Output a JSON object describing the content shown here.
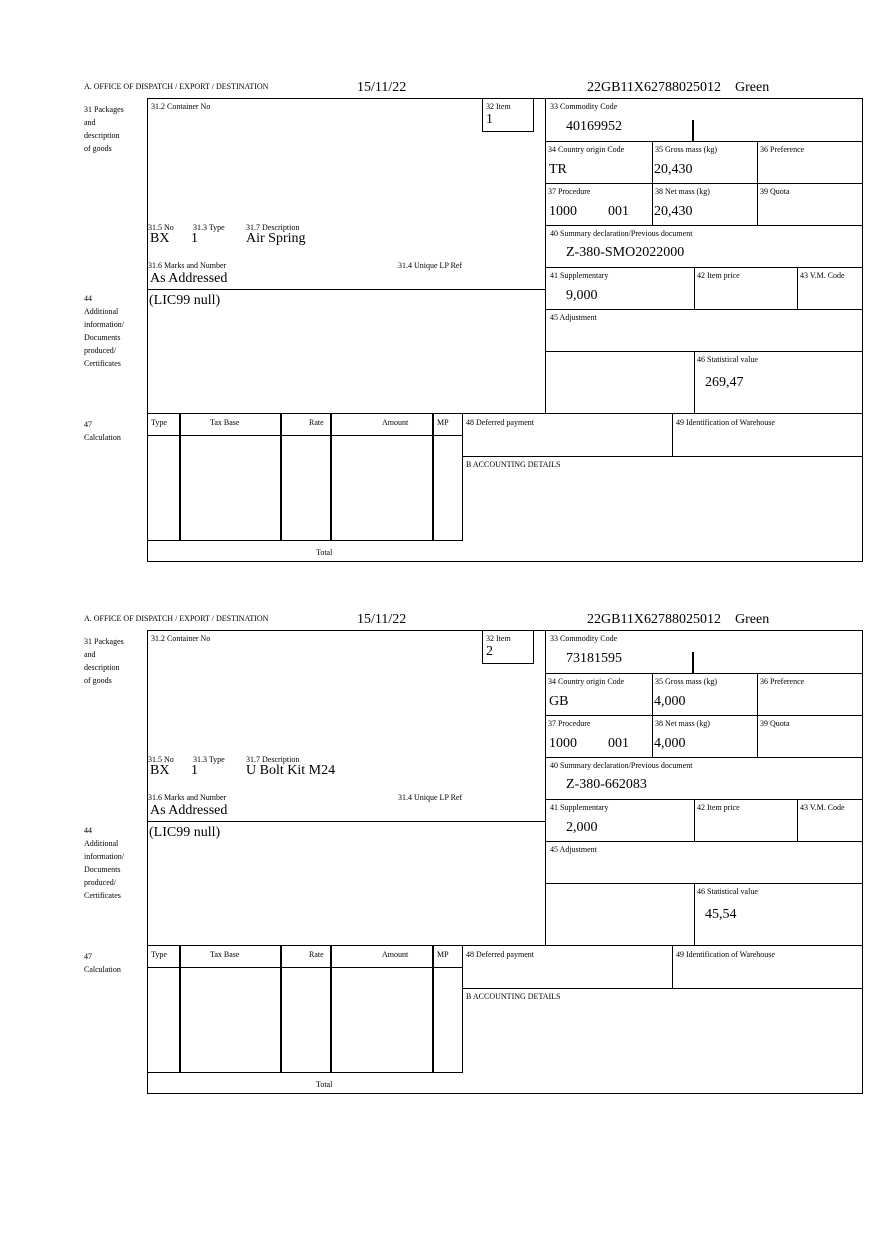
{
  "labels": {
    "office": "A. OFFICE OF DISPATCH / EXPORT / DESTINATION",
    "box31": "31 Packages\nand\ndescription\nof goods",
    "box31_2": "31.2 Container No",
    "box31_5": "31.5 No",
    "box31_3": "31.3 Type",
    "box31_7": "31.7 Description",
    "box31_6": "31.6 Marks and Number",
    "box31_4": "31.4 Unique LP Ref",
    "box32": "32 Item",
    "box33": "33 Commodity Code",
    "box34": "34 Country origin Code",
    "box35": "35 Gross mass (kg)",
    "box36": "36 Preference",
    "box37": "37 Procedure",
    "box38": "38 Net mass (kg)",
    "box39": "39 Quota",
    "box40": "40 Summary declaration/Previous document",
    "box41": "41 Supplementary",
    "box42": "42 Item price",
    "box43": "43 V.M. Code",
    "box44": "44\nAdditional\ninformation/\nDocuments\nproduced/\nCertificates",
    "box45": "45 Adjustment",
    "box46": "46 Statistical value",
    "box47": "47\nCalculation",
    "col_type": "Type",
    "col_tax_base": "Tax Base",
    "col_rate": "Rate",
    "col_amount": "Amount",
    "col_mp": "MP",
    "total": "Total",
    "box48": "48 Deferred payment",
    "box49": "49 Identification of Warehouse",
    "boxB": "B ACCOUNTING DETAILS"
  },
  "forms": [
    {
      "date": "15/11/22",
      "reference": "22GB11X62788025012",
      "status": "Green",
      "item": "1",
      "commodity_code": "40169952",
      "origin": "TR",
      "gross_mass": "20,430",
      "procedure": "1000",
      "procedure_extra": "001",
      "net_mass": "20,430",
      "summary_doc": "Z-380-SMO2022000",
      "supplementary": "9,000",
      "statistical_value": "269,47",
      "pkg_no": "BX",
      "pkg_type": "1",
      "description": "Air Spring",
      "marks": "As Addressed",
      "additional_info": "(LIC99 null)"
    },
    {
      "date": "15/11/22",
      "reference": "22GB11X62788025012",
      "status": "Green",
      "item": "2",
      "commodity_code": "73181595",
      "origin": "GB",
      "gross_mass": "4,000",
      "procedure": "1000",
      "procedure_extra": "001",
      "net_mass": "4,000",
      "summary_doc": "Z-380-662083",
      "supplementary": "2,000",
      "statistical_value": "45,54",
      "pkg_no": "BX",
      "pkg_type": "1",
      "description": "U Bolt Kit M24",
      "marks": "As Addressed",
      "additional_info": "(LIC99 null)"
    }
  ]
}
